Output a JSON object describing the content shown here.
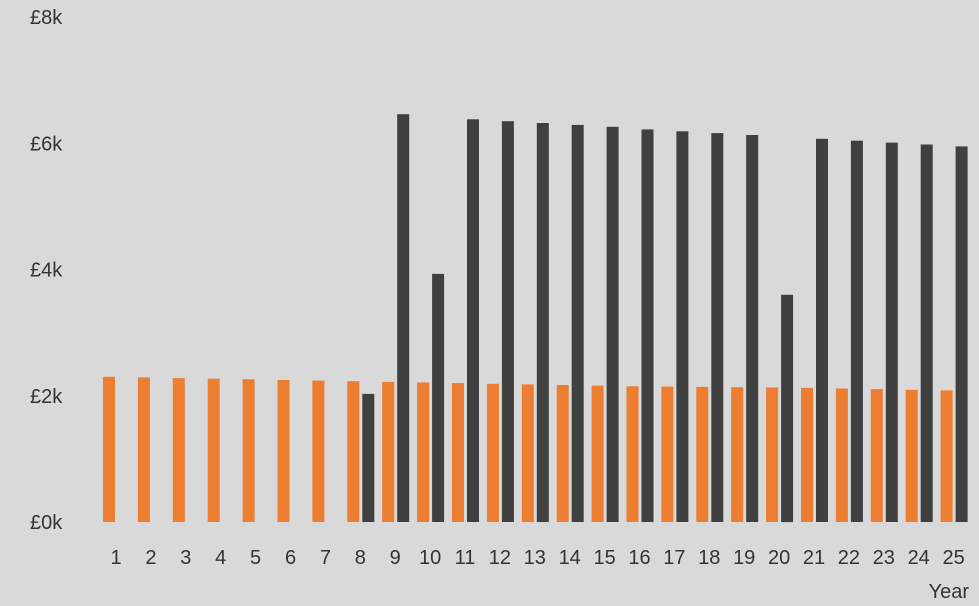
{
  "chart_data": {
    "type": "bar",
    "xlabel": "Year",
    "categories": [
      "1",
      "2",
      "3",
      "4",
      "5",
      "6",
      "7",
      "8",
      "9",
      "10",
      "11",
      "12",
      "13",
      "14",
      "15",
      "16",
      "17",
      "18",
      "19",
      "20",
      "21",
      "22",
      "23",
      "24",
      "25"
    ],
    "y_tick_labels": [
      "£0k",
      "£2k",
      "£4k",
      "£6k",
      "£8k"
    ],
    "y_ticks": [
      0,
      2000,
      4000,
      6000,
      8000
    ],
    "ylim": [
      0,
      8000
    ],
    "grid": false,
    "legend": "none",
    "series": [
      {
        "color": "#ed7d31",
        "values": [
          2300,
          2290,
          2280,
          2270,
          2260,
          2250,
          2240,
          2230,
          2220,
          2210,
          2200,
          2190,
          2180,
          2170,
          2160,
          2150,
          2145,
          2140,
          2135,
          2130,
          2125,
          2115,
          2105,
          2095,
          2085
        ]
      },
      {
        "color": "#404040",
        "values": [
          null,
          null,
          null,
          null,
          null,
          null,
          null,
          2030,
          6460,
          3930,
          6380,
          6350,
          6320,
          6290,
          6260,
          6220,
          6190,
          6160,
          6130,
          3600,
          6070,
          6040,
          6010,
          5980,
          5950
        ]
      }
    ]
  }
}
